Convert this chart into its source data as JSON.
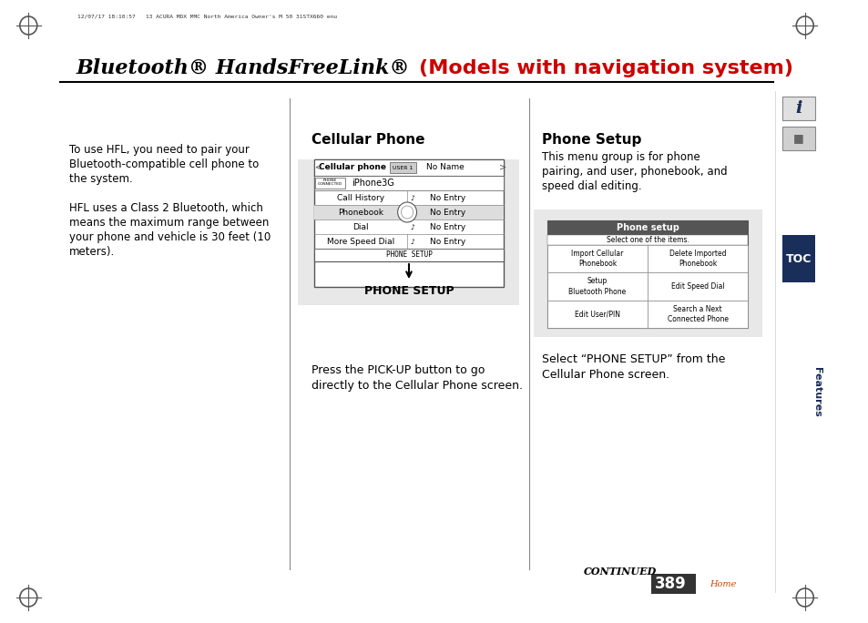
{
  "title_black": "Bluetooth® HandsFreeLink® ",
  "title_red": "(Models with navigation system)",
  "page_number": "389",
  "header_meta": "12/07/17 18:10:57   13 ACURA MDX MMC North America Owner's M 50 31STX660 enu",
  "left_text": [
    "To use HFL, you need to pair your",
    "Bluetooth-compatible cell phone to",
    "the system.",
    "",
    "HFL uses a Class 2 Bluetooth, which",
    "means the maximum range between",
    "your phone and vehicle is 30 feet (10",
    "meters)."
  ],
  "cellular_phone_title": "Cellular Phone",
  "cellular_screen": {
    "header_label": "Cellular phone",
    "user_label": "USER 1",
    "name_label": "No Name",
    "phone_name": "iPhone3G",
    "rows": [
      [
        "Call History",
        "No Entry"
      ],
      [
        "Phonebook",
        "No Entry"
      ],
      [
        "Dial",
        "No Entry"
      ],
      [
        "More Speed Dial",
        "No Entry"
      ]
    ],
    "bottom_bar": "PHONE SETUP"
  },
  "cellular_arrow_label": "PHONE SETUP",
  "cellular_caption": "Press the PICK-UP button to go\ndirectly to the Cellular Phone screen.",
  "phone_setup_title": "Phone Setup",
  "phone_setup_desc": "This menu group is for phone\npairing, and user, phonebook, and\nspeed dial editing.",
  "phone_setup_screen": {
    "header": "Phone setup",
    "subheader": "Select one of the items.",
    "items": [
      [
        "Import Cellular\nPhonebook",
        "Delete Imported\nPhonebook"
      ],
      [
        "Setup\nBluetooth Phone",
        "Edit Speed Dial"
      ],
      [
        "Edit User/PIN",
        "Search a Next\nConnected Phone"
      ]
    ]
  },
  "phone_setup_caption": "Select “PHONE SETUP” from the\nCellular Phone screen.",
  "toc_label": "TOC",
  "features_label": "Features",
  "continued_label": "CONTINUED",
  "bg_color": "#ffffff",
  "gray_bg": "#e8e8e8",
  "text_color": "#000000",
  "red_color": "#cc0000",
  "blue_dark": "#1a2e5a"
}
